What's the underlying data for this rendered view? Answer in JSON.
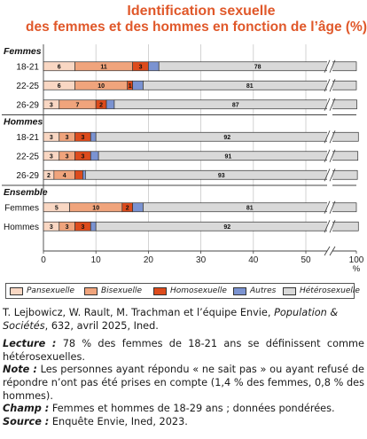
{
  "title_line1": "Identification sexuelle",
  "title_line2": "des femmes et des hommes en fonction de l’âge (%)",
  "chart_data": {
    "type": "bar",
    "orientation": "horizontal",
    "stacked": true,
    "xlim": [
      0,
      100
    ],
    "x_ticks": [
      "0",
      "10",
      "20",
      "30",
      "40",
      "50",
      "100"
    ],
    "x_unit": "%",
    "axis_break": "between 50 and 100",
    "grid": "vertical gridlines",
    "legend_position": "bottom",
    "colors": {
      "Pansexuelle": "#f9d7c3",
      "Bisexuelle": "#f0a47c",
      "Homosexuelle": "#dd4b1c",
      "Autres": "#7b93d1",
      "Hétérosexuelle": "#d9d9d9"
    },
    "series_order": [
      "Pansexuelle",
      "Bisexuelle",
      "Homosexuelle",
      "Autres",
      "Hétérosexuelle"
    ],
    "groups": [
      {
        "name": "Femmes",
        "rows": [
          {
            "label": "18-21",
            "values": [
              6,
              11,
              3,
              2,
              78
            ],
            "labels": [
              "6",
              "11",
              "3",
              "",
              "78"
            ]
          },
          {
            "label": "22-25",
            "values": [
              6,
              10,
              1,
              2,
              81
            ],
            "labels": [
              "6",
              "10",
              "1",
              "",
              "81"
            ]
          },
          {
            "label": "26-29",
            "values": [
              3,
              7,
              2,
              1.5,
              87
            ],
            "labels": [
              "3",
              "7",
              "2",
              "",
              "87"
            ]
          }
        ]
      },
      {
        "name": "Hommes",
        "rows": [
          {
            "label": "18-21",
            "values": [
              3,
              3,
              3,
              1,
              92
            ],
            "labels": [
              "3",
              "3",
              "3",
              "",
              "92"
            ]
          },
          {
            "label": "22-25",
            "values": [
              3,
              3,
              3,
              1.5,
              91
            ],
            "labels": [
              "3",
              "3",
              "3",
              "",
              "91"
            ]
          },
          {
            "label": "26-29",
            "values": [
              2,
              4,
              1.5,
              0.5,
              93
            ],
            "labels": [
              "2",
              "4",
              "",
              "",
              "93"
            ]
          }
        ]
      },
      {
        "name": "Ensemble",
        "rows": [
          {
            "label": "Femmes",
            "values": [
              5,
              10,
              2,
              2,
              81
            ],
            "labels": [
              "5",
              "10",
              "2",
              "",
              "81"
            ]
          },
          {
            "label": "Hommes",
            "values": [
              3,
              3,
              3,
              1,
              92
            ],
            "labels": [
              "3",
              "3",
              "3",
              "",
              "92"
            ]
          }
        ]
      }
    ]
  },
  "legend": [
    "Pansexuelle",
    "Bisexuelle",
    "Homosexuelle",
    "Autres",
    "Hétérosexuelle"
  ],
  "notes": {
    "source_authors": "T. Lejbowicz, W. Rault, M. Trachman et l’équipe Envie, ",
    "source_journal": "Population & Sociétés",
    "source_rest": ", 632, avril 2025, Ined.",
    "lecture_label": "Lecture :",
    "lecture_text": " 78 % des femmes de 18-21 ans se définissent comme hétérosexuelles.",
    "note_label": "Note :",
    "note_text": " Les personnes ayant répondu « ne sait pas » ou ayant refusé de répondre n’ont pas été prises en compte (1,4 % des femmes, 0,8 % des hommes).",
    "champ_label": "Champ :",
    "champ_text": " Femmes et hommes de 18-29 ans ; données pondérées.",
    "source_label": "Source :",
    "source_text": " Enquête Envie, Ined, 2023."
  }
}
